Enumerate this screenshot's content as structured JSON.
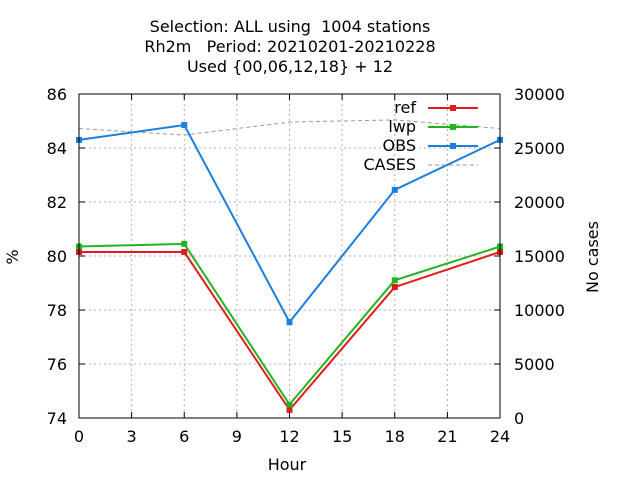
{
  "chart_data": {
    "type": "line",
    "title_lines": [
      "Selection: ALL using  1004 stations",
      "Rh2m   Period: 20210201-20210228",
      "Used {00,06,12,18} + 12"
    ],
    "xlabel": "Hour",
    "ylabel": "%",
    "y2label": "No cases",
    "x": [
      0,
      6,
      12,
      18,
      24
    ],
    "xlim": [
      0,
      24
    ],
    "xticks": [
      "0",
      "3",
      "6",
      "9",
      "12",
      "15",
      "18",
      "21",
      "24"
    ],
    "ylim": [
      74,
      86
    ],
    "yticks": [
      "74",
      "76",
      "78",
      "80",
      "82",
      "84",
      "86"
    ],
    "y2lim": [
      0,
      30000
    ],
    "y2ticks": [
      "0",
      "5000",
      "10000",
      "15000",
      "20000",
      "25000",
      "30000"
    ],
    "grid": true,
    "legend_position": "top-right",
    "series": [
      {
        "name": "ref",
        "color": "#e31a1c",
        "axis": "y1",
        "style": "line-points",
        "values": [
          80.15,
          80.15,
          74.3,
          78.85,
          80.15
        ]
      },
      {
        "name": "lwp",
        "color": "#22b422",
        "axis": "y1",
        "style": "line-points",
        "values": [
          80.35,
          80.45,
          74.5,
          79.1,
          80.35
        ]
      },
      {
        "name": "OBS",
        "color": "#1c7fde",
        "axis": "y1",
        "style": "line-points",
        "values": [
          84.3,
          84.85,
          77.55,
          82.45,
          84.3
        ]
      },
      {
        "name": "CASES",
        "color": "#9a9a9a",
        "axis": "y2",
        "style": "dashed",
        "values": [
          26800,
          26200,
          27400,
          27600,
          26800
        ]
      }
    ]
  }
}
